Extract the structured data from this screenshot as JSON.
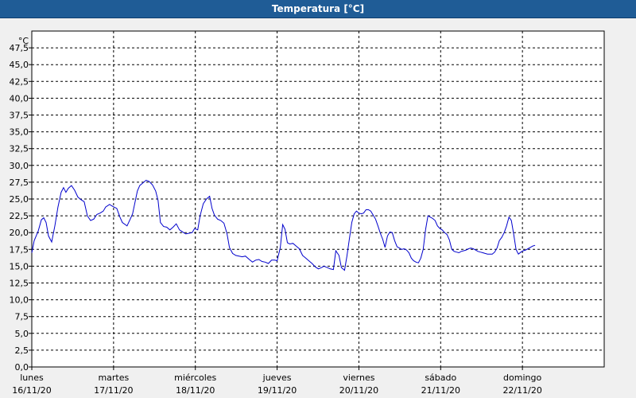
{
  "window": {
    "title": "Temperatura [°C]"
  },
  "chart_data": {
    "type": "line",
    "title": "Temperatura [°C]",
    "ylabel": "°C",
    "xlabel": "",
    "ylim": [
      0,
      50
    ],
    "xlim": [
      0,
      7
    ],
    "grid": true,
    "colors": {
      "line": "#0000cc",
      "grid": "#000000",
      "plot_bg": "#ffffff",
      "title_bg": "#1f5c96"
    },
    "y_ticks": [
      "0,0",
      "2,5",
      "5,0",
      "7,5",
      "10,0",
      "12,5",
      "15,0",
      "17,5",
      "20,0",
      "22,5",
      "25,0",
      "27,5",
      "30,0",
      "32,5",
      "35,0",
      "37,5",
      "40,0",
      "42,5",
      "45,0",
      "47,5"
    ],
    "x_ticks": [
      {
        "day": "lunes",
        "date": "16/11/20"
      },
      {
        "day": "martes",
        "date": "17/11/20"
      },
      {
        "day": "miércoles",
        "date": "18/11/20"
      },
      {
        "day": "jueves",
        "date": "19/11/20"
      },
      {
        "day": "viernes",
        "date": "20/11/20"
      },
      {
        "day": "sábado",
        "date": "21/11/20"
      },
      {
        "day": "domingo",
        "date": "22/11/20"
      }
    ],
    "series": [
      {
        "values": [
          [
            0.0,
            17.0
          ],
          [
            0.029,
            18.8
          ],
          [
            0.078,
            20.2
          ],
          [
            0.117,
            21.9
          ],
          [
            0.146,
            22.2
          ],
          [
            0.175,
            21.5
          ],
          [
            0.204,
            19.5
          ],
          [
            0.243,
            18.6
          ],
          [
            0.282,
            21.0
          ],
          [
            0.32,
            23.8
          ],
          [
            0.359,
            26.0
          ],
          [
            0.388,
            26.7
          ],
          [
            0.417,
            26.0
          ],
          [
            0.447,
            26.6
          ],
          [
            0.485,
            27.0
          ],
          [
            0.524,
            26.3
          ],
          [
            0.563,
            25.3
          ],
          [
            0.602,
            24.9
          ],
          [
            0.641,
            24.6
          ],
          [
            0.68,
            22.5
          ],
          [
            0.718,
            21.8
          ],
          [
            0.757,
            22.0
          ],
          [
            0.796,
            22.7
          ],
          [
            0.835,
            22.9
          ],
          [
            0.874,
            23.2
          ],
          [
            0.903,
            23.8
          ],
          [
            0.951,
            24.2
          ],
          [
            0.99,
            23.9
          ],
          [
            1.039,
            23.6
          ],
          [
            1.078,
            22.3
          ],
          [
            1.107,
            21.5
          ],
          [
            1.165,
            21.0
          ],
          [
            1.204,
            22.0
          ],
          [
            1.233,
            22.8
          ],
          [
            1.262,
            24.5
          ],
          [
            1.291,
            26.2
          ],
          [
            1.32,
            27.0
          ],
          [
            1.359,
            27.4
          ],
          [
            1.398,
            27.8
          ],
          [
            1.437,
            27.6
          ],
          [
            1.476,
            27.1
          ],
          [
            1.515,
            26.2
          ],
          [
            1.544,
            24.8
          ],
          [
            1.573,
            21.5
          ],
          [
            1.612,
            20.9
          ],
          [
            1.65,
            20.8
          ],
          [
            1.689,
            20.4
          ],
          [
            1.728,
            20.8
          ],
          [
            1.767,
            21.3
          ],
          [
            1.806,
            20.4
          ],
          [
            1.845,
            20.1
          ],
          [
            1.883,
            19.8
          ],
          [
            1.922,
            19.9
          ],
          [
            1.961,
            20.0
          ],
          [
            1.99,
            20.6
          ],
          [
            2.029,
            20.4
          ],
          [
            2.058,
            22.5
          ],
          [
            2.097,
            24.3
          ],
          [
            2.136,
            25.0
          ],
          [
            2.175,
            25.4
          ],
          [
            2.204,
            23.6
          ],
          [
            2.233,
            22.6
          ],
          [
            2.272,
            22.0
          ],
          [
            2.311,
            21.8
          ],
          [
            2.35,
            21.4
          ],
          [
            2.388,
            19.8
          ],
          [
            2.417,
            17.8
          ],
          [
            2.456,
            16.9
          ],
          [
            2.495,
            16.6
          ],
          [
            2.534,
            16.5
          ],
          [
            2.573,
            16.4
          ],
          [
            2.612,
            16.5
          ],
          [
            2.66,
            16.0
          ],
          [
            2.699,
            15.6
          ],
          [
            2.738,
            15.9
          ],
          [
            2.777,
            16.0
          ],
          [
            2.816,
            15.7
          ],
          [
            2.854,
            15.6
          ],
          [
            2.893,
            15.4
          ],
          [
            2.932,
            15.9
          ],
          [
            2.971,
            15.9
          ],
          [
            3.0,
            15.8
          ],
          [
            3.039,
            17.8
          ],
          [
            3.068,
            21.2
          ],
          [
            3.097,
            20.5
          ],
          [
            3.126,
            18.5
          ],
          [
            3.155,
            18.3
          ],
          [
            3.194,
            18.4
          ],
          [
            3.233,
            18.0
          ],
          [
            3.272,
            17.6
          ],
          [
            3.311,
            16.6
          ],
          [
            3.35,
            16.2
          ],
          [
            3.388,
            15.8
          ],
          [
            3.427,
            15.4
          ],
          [
            3.466,
            14.9
          ],
          [
            3.505,
            14.6
          ],
          [
            3.544,
            14.8
          ],
          [
            3.573,
            15.0
          ],
          [
            3.612,
            14.8
          ],
          [
            3.65,
            14.6
          ],
          [
            3.689,
            14.5
          ],
          [
            3.718,
            17.3
          ],
          [
            3.757,
            16.6
          ],
          [
            3.786,
            14.8
          ],
          [
            3.825,
            14.4
          ],
          [
            3.854,
            16.5
          ],
          [
            3.883,
            19.0
          ],
          [
            3.913,
            21.5
          ],
          [
            3.942,
            22.8
          ],
          [
            3.971,
            23.2
          ],
          [
            4.0,
            22.9
          ],
          [
            4.029,
            22.8
          ],
          [
            4.058,
            22.9
          ],
          [
            4.087,
            23.4
          ],
          [
            4.117,
            23.4
          ],
          [
            4.146,
            23.2
          ],
          [
            4.175,
            22.6
          ],
          [
            4.204,
            22.0
          ],
          [
            4.233,
            21.0
          ],
          [
            4.262,
            19.9
          ],
          [
            4.291,
            19.0
          ],
          [
            4.32,
            17.8
          ],
          [
            4.35,
            19.5
          ],
          [
            4.379,
            20.1
          ],
          [
            4.408,
            20.0
          ],
          [
            4.437,
            18.8
          ],
          [
            4.466,
            17.9
          ],
          [
            4.495,
            17.7
          ],
          [
            4.524,
            17.5
          ],
          [
            4.553,
            17.6
          ],
          [
            4.583,
            17.4
          ],
          [
            4.612,
            17.0
          ],
          [
            4.641,
            16.2
          ],
          [
            4.67,
            15.8
          ],
          [
            4.699,
            15.6
          ],
          [
            4.728,
            15.5
          ],
          [
            4.757,
            16.2
          ],
          [
            4.786,
            17.5
          ],
          [
            4.816,
            20.5
          ],
          [
            4.845,
            22.5
          ],
          [
            4.874,
            22.3
          ],
          [
            4.903,
            22.1
          ],
          [
            4.932,
            21.8
          ],
          [
            4.961,
            21.0
          ],
          [
            4.99,
            20.6
          ],
          [
            5.019,
            20.4
          ],
          [
            5.049,
            20.0
          ],
          [
            5.078,
            19.7
          ],
          [
            5.107,
            18.9
          ],
          [
            5.136,
            17.5
          ],
          [
            5.165,
            17.2
          ],
          [
            5.194,
            17.1
          ],
          [
            5.223,
            17.0
          ],
          [
            5.252,
            17.2
          ],
          [
            5.282,
            17.3
          ],
          [
            5.311,
            17.4
          ],
          [
            5.34,
            17.6
          ],
          [
            5.369,
            17.7
          ],
          [
            5.398,
            17.6
          ],
          [
            5.427,
            17.4
          ],
          [
            5.456,
            17.2
          ],
          [
            5.485,
            17.1
          ],
          [
            5.515,
            17.0
          ],
          [
            5.544,
            16.9
          ],
          [
            5.573,
            16.8
          ],
          [
            5.602,
            16.8
          ],
          [
            5.631,
            16.8
          ],
          [
            5.66,
            17.1
          ],
          [
            5.689,
            17.7
          ],
          [
            5.718,
            18.8
          ],
          [
            5.748,
            19.3
          ],
          [
            5.777,
            20.0
          ],
          [
            5.806,
            21.0
          ],
          [
            5.835,
            22.3
          ],
          [
            5.864,
            21.8
          ],
          [
            5.893,
            19.8
          ],
          [
            5.922,
            17.5
          ],
          [
            5.951,
            16.8
          ],
          [
            5.981,
            17.1
          ],
          [
            6.01,
            17.3
          ],
          [
            6.039,
            17.4
          ],
          [
            6.068,
            17.6
          ],
          [
            6.097,
            17.8
          ],
          [
            6.126,
            18.0
          ],
          [
            6.155,
            18.1
          ]
        ]
      }
    ]
  }
}
